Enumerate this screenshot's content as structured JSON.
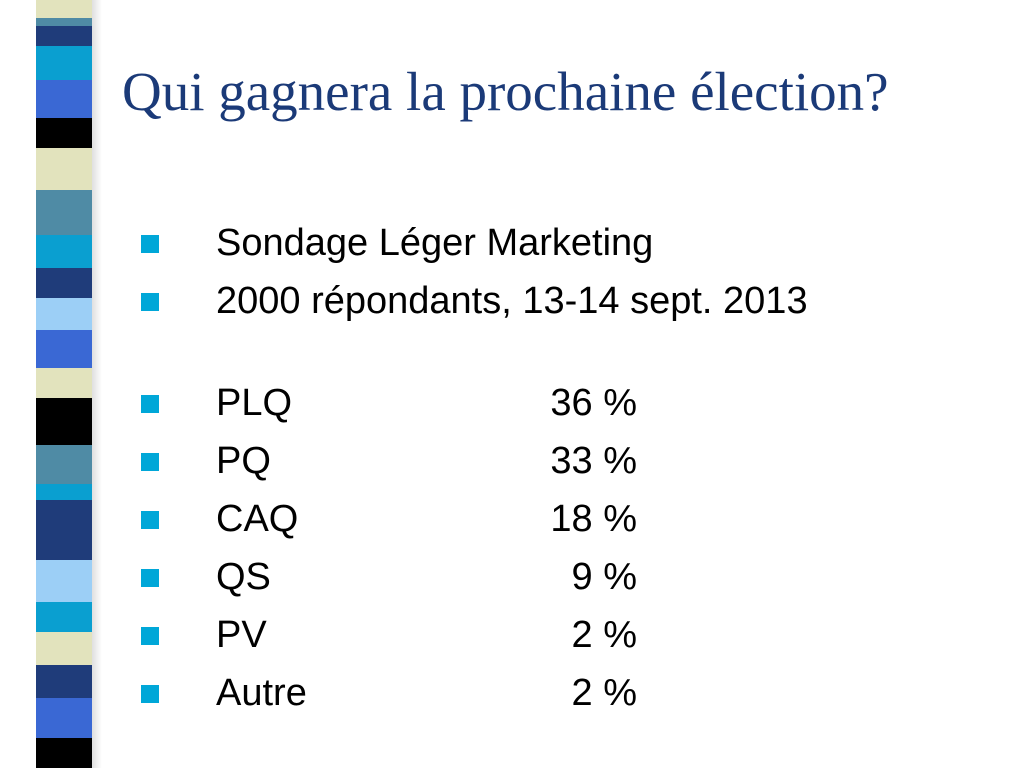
{
  "slide": {
    "title": "Qui gagnera la prochaine élection?",
    "intro": [
      "Sondage Léger Marketing",
      "2000 répondants, 13-14 sept. 2013"
    ],
    "results": [
      {
        "party": "PLQ",
        "value": "36 %"
      },
      {
        "party": "PQ",
        "value": "33 %"
      },
      {
        "party": "CAQ",
        "value": "18 %"
      },
      {
        "party": "QS",
        "value": "9 %"
      },
      {
        "party": "PV",
        "value": "2 %"
      },
      {
        "party": "Autre",
        "value": "2 %"
      }
    ]
  },
  "theme": {
    "title_color": "#1b3a78",
    "bullet_color": "#00a7d8",
    "stripe_colors": [
      "#1f3c7a",
      "#3a68d4",
      "#4f8ba5",
      "#0a9fd0",
      "#e2e3bd",
      "#000000",
      "#9ccff6"
    ]
  }
}
